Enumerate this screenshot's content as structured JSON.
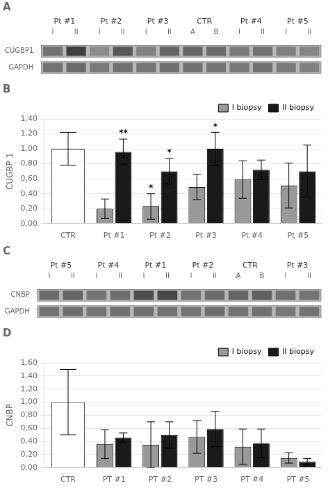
{
  "chart_data": [
    {
      "type": "heatmap",
      "title": "A",
      "categories": [
        "I",
        "II",
        "I",
        "II",
        "I",
        "II",
        "A",
        "B",
        "I",
        "II",
        "I",
        "II"
      ],
      "rows": [
        "CUGBP1",
        "GAPDH"
      ],
      "groups": [
        {
          "name": "Pt #1",
          "span": 2
        },
        {
          "name": "Pt #2",
          "span": 2
        },
        {
          "name": "Pt #3",
          "span": 2
        },
        {
          "name": "CTR",
          "span": 2
        },
        {
          "name": "Pt #4",
          "span": 2
        },
        {
          "name": "Pt #5",
          "span": 2
        }
      ],
      "cells": [
        [
          0.55,
          0.75,
          0.45,
          0.65,
          0.5,
          0.6,
          0.6,
          0.58,
          0.52,
          0.55,
          0.5,
          0.48
        ],
        [
          0.55,
          0.58,
          0.52,
          0.56,
          0.54,
          0.57,
          0.56,
          0.55,
          0.53,
          0.56,
          0.52,
          0.5
        ]
      ]
    },
    {
      "type": "bar",
      "title": "B",
      "ylabel": "CUGBP 1",
      "categories": [
        "CTR",
        "Pt #1",
        "Pt #2",
        "Pt #3",
        "Pt #4",
        "Pt #5"
      ],
      "series": [
        {
          "name": "I biopsy",
          "color": "#999999",
          "colors": [
            "#ffffff",
            "#999999",
            "#999999",
            "#999999",
            "#999999",
            "#999999"
          ],
          "values": [
            1.0,
            0.2,
            0.23,
            0.49,
            0.59,
            0.51
          ],
          "errors": [
            0.22,
            0.13,
            0.17,
            0.17,
            0.25,
            0.3
          ]
        },
        {
          "name": "II biopsy",
          "color": "#1a1a1a",
          "values": [
            null,
            0.96,
            0.7,
            1.0,
            0.72,
            0.7
          ],
          "errors": [
            null,
            0.17,
            0.17,
            0.22,
            0.13,
            0.35
          ]
        }
      ],
      "annotations": [
        {
          "category": "Pt #1",
          "series": "II biopsy",
          "text": "**"
        },
        {
          "category": "Pt #2",
          "series": "I biopsy",
          "text": "*"
        },
        {
          "category": "Pt #2",
          "series": "II biopsy",
          "text": "*"
        },
        {
          "category": "Pt #3",
          "series": "II biopsy",
          "text": "*"
        }
      ],
      "ylim": [
        0.0,
        1.4
      ],
      "yticks": [
        {
          "value": 0.0,
          "label": "0,00"
        },
        {
          "value": 0.2,
          "label": "0,20"
        },
        {
          "value": 0.4,
          "label": "0,40"
        },
        {
          "value": 0.6,
          "label": "0,60"
        },
        {
          "value": 0.8,
          "label": "0,80"
        },
        {
          "value": 1.0,
          "label": "1,00"
        },
        {
          "value": 1.2,
          "label": "1,20"
        },
        {
          "value": 1.4,
          "label": "1,40"
        }
      ],
      "grid": true,
      "legend": "upper right"
    },
    {
      "type": "heatmap",
      "title": "C",
      "categories": [
        "I",
        "II",
        "I",
        "II",
        "I",
        "II",
        "I",
        "II",
        "A",
        "B",
        "I",
        "II"
      ],
      "rows": [
        "CNBP",
        "GAPDH"
      ],
      "groups": [
        {
          "name": "Pt #5",
          "span": 2
        },
        {
          "name": "Pt #4",
          "span": 2
        },
        {
          "name": "Pt #1",
          "span": 2
        },
        {
          "name": "Pt #2",
          "span": 2
        },
        {
          "name": "CTR",
          "span": 2
        },
        {
          "name": "Pt #3",
          "span": 2
        }
      ],
      "cells": [
        [
          0.58,
          0.6,
          0.55,
          0.57,
          0.7,
          0.72,
          0.55,
          0.58,
          0.6,
          0.62,
          0.56,
          0.54
        ],
        [
          0.55,
          0.57,
          0.54,
          0.56,
          0.56,
          0.55,
          0.54,
          0.57,
          0.55,
          0.56,
          0.53,
          0.55
        ]
      ]
    },
    {
      "type": "bar",
      "title": "D",
      "ylabel": "CNBP",
      "categories": [
        "CTR",
        "PT #1",
        "PT #2",
        "PT #3",
        "PT #4",
        "PT #5"
      ],
      "series": [
        {
          "name": "I biopsy",
          "color": "#999999",
          "colors": [
            "#ffffff",
            "#999999",
            "#999999",
            "#999999",
            "#999999",
            "#999999"
          ],
          "values": [
            1.0,
            0.36,
            0.35,
            0.47,
            0.32,
            0.15
          ],
          "errors": [
            0.5,
            0.22,
            0.35,
            0.25,
            0.27,
            0.08
          ]
        },
        {
          "name": "II biopsy",
          "color": "#1a1a1a",
          "values": [
            null,
            0.46,
            0.5,
            0.59,
            0.37,
            0.09
          ],
          "errors": [
            null,
            0.07,
            0.2,
            0.27,
            0.22,
            0.05
          ]
        }
      ],
      "ylim": [
        0.0,
        1.6
      ],
      "yticks": [
        {
          "value": 0.0,
          "label": "0,00"
        },
        {
          "value": 0.2,
          "label": "0,20"
        },
        {
          "value": 0.4,
          "label": "0,40"
        },
        {
          "value": 0.6,
          "label": "0,60"
        },
        {
          "value": 0.8,
          "label": "0,80"
        },
        {
          "value": 1.0,
          "label": "1,00"
        },
        {
          "value": 1.2,
          "label": "1,20"
        },
        {
          "value": 1.4,
          "label": "1,40"
        },
        {
          "value": 1.6,
          "label": "1,60"
        }
      ],
      "grid": true,
      "legend": "upper right"
    }
  ]
}
